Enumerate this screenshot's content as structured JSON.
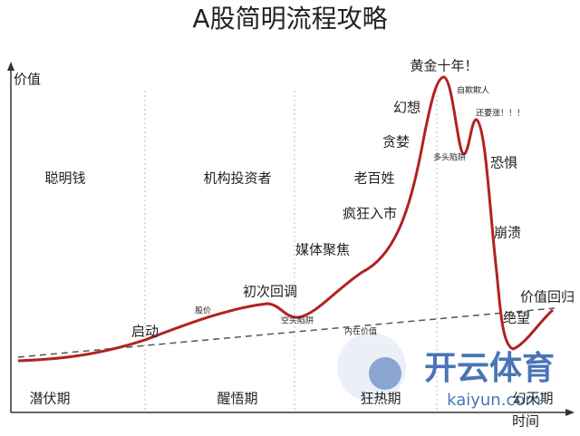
{
  "header": {
    "title": "A股简明流程攻略"
  },
  "axes": {
    "y_label": "价值",
    "x_label": "时间"
  },
  "investors": [
    "聪明钱",
    "机构投资者",
    "老百姓"
  ],
  "phases": [
    "潜伏期",
    "醒悟期",
    "狂热期",
    "幻灭期"
  ],
  "stages": [
    "启动",
    "初次回调",
    "媒体聚焦",
    "疯狂入市",
    "贪婪",
    "幻想",
    "黄金十年！",
    "恐惧",
    "崩溃",
    "绝望",
    "价值回归"
  ],
  "notes": [
    "股价",
    "空头陷阱",
    "内在价值",
    "自欺欺人",
    "多头陷阱",
    "还要涨！！！"
  ],
  "watermark": {
    "name": "开云体育",
    "site": "kaiyun.com"
  }
}
